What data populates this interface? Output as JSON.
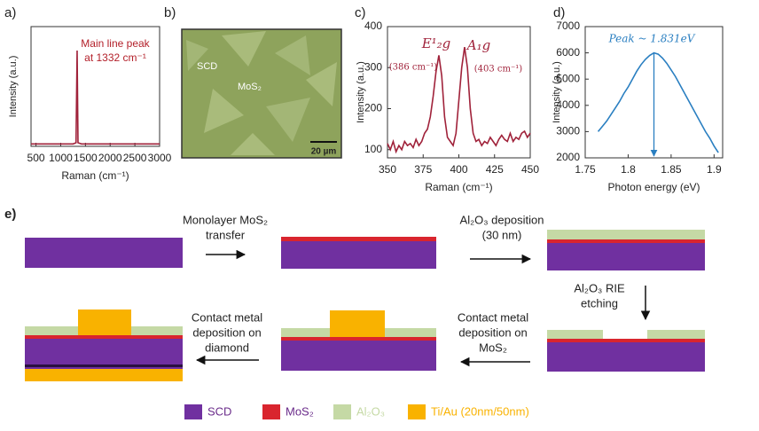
{
  "chart_data": [
    {
      "type": "line",
      "label": "a)",
      "annotation": [
        "Main line peak",
        "at 1332 cm⁻¹"
      ],
      "xlabel": "Raman (cm⁻¹)",
      "ylabel": "Intensity (a.u.)",
      "color": "#a0223a",
      "x": [
        400,
        1250,
        1310,
        1332,
        1350,
        1420,
        3000
      ],
      "values": [
        2,
        2,
        3,
        80,
        3,
        2,
        2
      ],
      "xlim": [
        400,
        3000
      ],
      "xticks": [
        500,
        1000,
        1500,
        2000,
        2500,
        3000
      ],
      "ylim": [
        0,
        100
      ]
    },
    {
      "type": "line",
      "label": "c)",
      "annotation": [
        "E¹₂g",
        "(386 cm⁻¹)",
        "A₁g",
        "(403 cm⁻¹)"
      ],
      "xlabel": "Raman (cm⁻¹)",
      "ylabel": "Intensity (a.u.)",
      "color": "#a0223a",
      "x": [
        350,
        352,
        354,
        356,
        358,
        360,
        362,
        364,
        366,
        368,
        370,
        372,
        374,
        376,
        378,
        380,
        382,
        384,
        386,
        388,
        390,
        392,
        394,
        396,
        398,
        400,
        402,
        404,
        406,
        408,
        410,
        412,
        414,
        416,
        418,
        420,
        422,
        424,
        426,
        428,
        430,
        432,
        434,
        436,
        438,
        440,
        442,
        444,
        446,
        448,
        450
      ],
      "values": [
        115,
        100,
        120,
        95,
        110,
        100,
        120,
        110,
        115,
        105,
        125,
        110,
        120,
        140,
        150,
        180,
        230,
        290,
        330,
        280,
        180,
        130,
        120,
        110,
        140,
        220,
        300,
        350,
        300,
        200,
        140,
        120,
        125,
        110,
        120,
        115,
        130,
        120,
        110,
        125,
        135,
        125,
        120,
        140,
        120,
        130,
        125,
        140,
        145,
        130,
        140
      ],
      "xlim": [
        350,
        450
      ],
      "xticks": [
        350,
        375,
        400,
        425,
        450
      ],
      "ylim": [
        80,
        400
      ],
      "yticks": [
        100,
        200,
        300,
        400
      ]
    },
    {
      "type": "line",
      "label": "d)",
      "annotation": [
        "Peak ~ 1.831eV"
      ],
      "xlabel": "Photon energy (eV)",
      "ylabel": "Intensity (a.u.)",
      "color": "#2a7fc1",
      "x": [
        1.765,
        1.77,
        1.775,
        1.78,
        1.785,
        1.79,
        1.795,
        1.8,
        1.805,
        1.81,
        1.815,
        1.82,
        1.825,
        1.83,
        1.835,
        1.84,
        1.845,
        1.85,
        1.855,
        1.86,
        1.865,
        1.87,
        1.875,
        1.88,
        1.885,
        1.89,
        1.895,
        1.9,
        1.905
      ],
      "values": [
        3000,
        3200,
        3400,
        3650,
        3900,
        4150,
        4450,
        4700,
        5000,
        5300,
        5550,
        5750,
        5900,
        6000,
        5950,
        5800,
        5600,
        5350,
        5100,
        4800,
        4500,
        4200,
        3900,
        3600,
        3300,
        3000,
        2750,
        2450,
        2200
      ],
      "xlim": [
        1.75,
        1.91
      ],
      "xticks": [
        1.75,
        1.8,
        1.85,
        1.9
      ],
      "ylim": [
        2000,
        7000
      ],
      "yticks": [
        2000,
        3000,
        4000,
        5000,
        6000,
        7000
      ]
    }
  ],
  "image": {
    "label": "b)",
    "texts": [
      "SCD",
      "MoS₂"
    ],
    "scale_bar": "20 µm"
  },
  "process": {
    "label": "e)",
    "steps": [
      [
        "Monolayer MoS₂",
        "transfer"
      ],
      [
        "Al₂O₃ deposition",
        "(30 nm)"
      ],
      [
        "Al₂O₃ RIE",
        "etching"
      ],
      [
        "Contact metal",
        "deposition on",
        "MoS₂"
      ],
      [
        "Contact metal",
        "deposition on",
        "diamond"
      ]
    ],
    "legend": [
      {
        "name": "SCD",
        "color": "#7030a0"
      },
      {
        "name": "MoS₂",
        "color": "#d9252e"
      },
      {
        "name": "Al₂O₃",
        "color": "#c5d9a5"
      },
      {
        "name": "Ti/Au (20nm/50nm)",
        "color": "#f9b200"
      }
    ]
  }
}
